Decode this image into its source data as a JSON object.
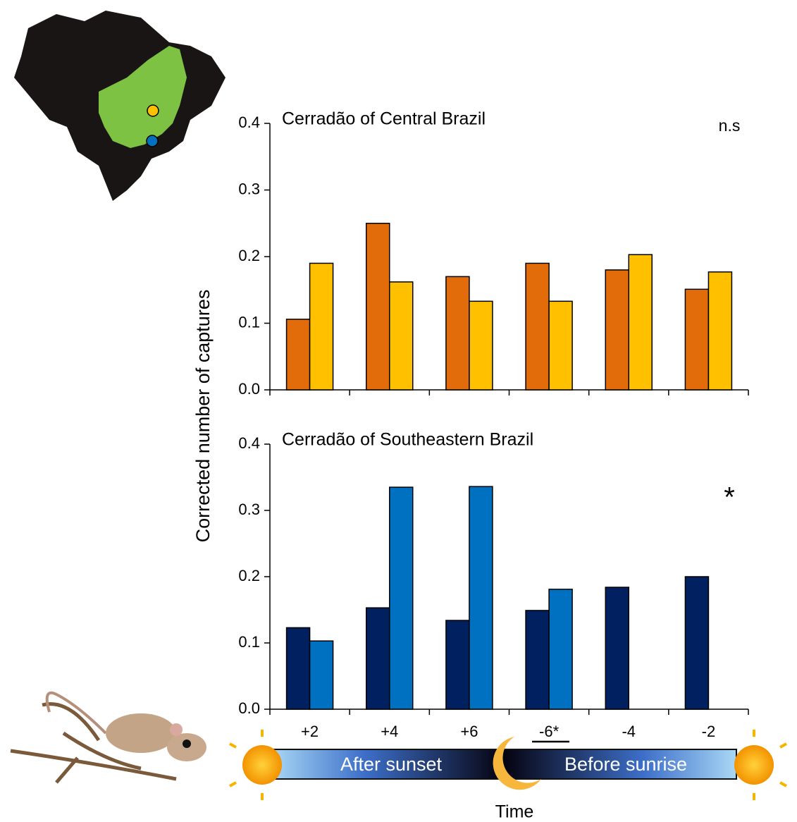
{
  "chart_data": [
    {
      "type": "bar",
      "title": "Cerradão of Central Brazil",
      "annotation": "n.s",
      "ylim": [
        0,
        0.4
      ],
      "yticks": [
        {
          "value": 0,
          "label": "0.0"
        },
        0.1,
        0.2,
        0.3,
        0.4
      ],
      "series": [
        {
          "color": "#e36c0a",
          "values": [
            0.106,
            0.25,
            0.17,
            0.19,
            0.18,
            0.151
          ]
        },
        {
          "color": "#ffc000",
          "values": [
            0.19,
            0.162,
            0.133,
            0.133,
            0.203,
            0.177
          ]
        }
      ]
    },
    {
      "type": "bar",
      "title": "Cerradão of Southeastern Brazil",
      "annotation": "*",
      "categories": [
        "+2",
        "+4",
        "+6",
        "-6*",
        "-4",
        "-2"
      ],
      "ylim": [
        0,
        0.4
      ],
      "yticks": [
        {
          "value": 0,
          "label": "0.0"
        },
        0.1,
        0.2,
        0.3,
        0.4
      ],
      "series": [
        {
          "color": "#002060",
          "values": [
            0.123,
            0.153,
            0.134,
            0.149,
            0.184,
            0.2
          ]
        },
        {
          "color": "#0070c0",
          "values": [
            0.103,
            0.335,
            0.336,
            0.181,
            null,
            null
          ]
        }
      ]
    }
  ],
  "figure": {
    "ylabel": "Corrected number of captures",
    "xlabel": "Time",
    "after": "After sunset",
    "before": "Before sunrise"
  }
}
